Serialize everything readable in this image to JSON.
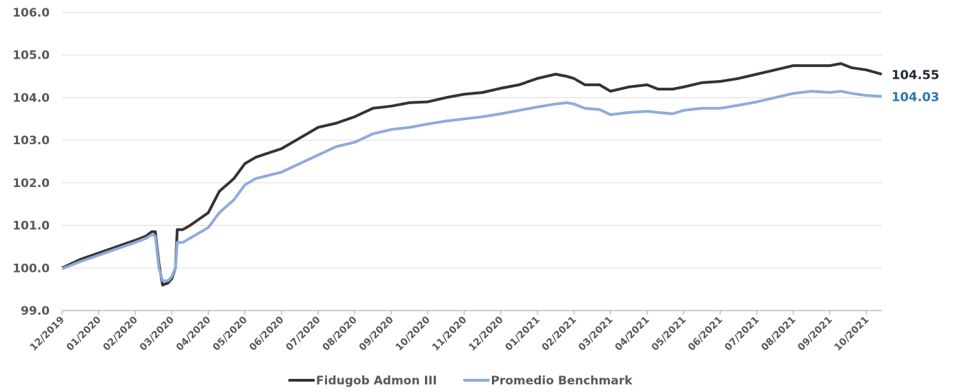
{
  "chart_data": {
    "type": "line",
    "x": [
      0,
      0.5,
      1,
      1.5,
      2,
      2.3,
      2.45,
      2.55,
      2.65,
      2.75,
      2.9,
      3.0,
      3.1,
      3.15,
      3.3,
      3.5,
      4.0,
      4.3,
      4.7,
      5.0,
      5.3,
      6.0,
      6.5,
      7.0,
      7.5,
      8.0,
      8.5,
      9.0,
      9.5,
      10.0,
      10.5,
      11.0,
      11.5,
      12.0,
      12.5,
      13.0,
      13.5,
      13.8,
      14.0,
      14.3,
      14.7,
      15.0,
      15.5,
      16.0,
      16.3,
      16.7,
      17.0,
      17.5,
      18.0,
      18.5,
      19.0,
      19.5,
      20.0,
      20.5,
      21.0,
      21.3,
      21.6,
      22.0,
      22.42
    ],
    "series": [
      {
        "name": "Fidugob Admon III",
        "color": "#333333",
        "label_color": "#222a35",
        "values": [
          100.0,
          100.2,
          100.35,
          100.5,
          100.65,
          100.75,
          100.85,
          100.85,
          100.1,
          99.6,
          99.65,
          99.75,
          100.0,
          100.9,
          100.9,
          101.0,
          101.3,
          101.8,
          102.1,
          102.45,
          102.6,
          102.8,
          103.05,
          103.3,
          103.4,
          103.55,
          103.75,
          103.8,
          103.88,
          103.9,
          104.0,
          104.08,
          104.12,
          104.22,
          104.3,
          104.45,
          104.55,
          104.5,
          104.45,
          104.3,
          104.3,
          104.15,
          104.25,
          104.3,
          104.2,
          104.2,
          104.25,
          104.35,
          104.38,
          104.45,
          104.55,
          104.65,
          104.75,
          104.75,
          104.75,
          104.8,
          104.7,
          104.65,
          104.55
        ]
      },
      {
        "name": "Promedio Benchmark",
        "color": "#8faadc",
        "label_color": "#2e75b6",
        "values": [
          99.98,
          100.15,
          100.3,
          100.45,
          100.6,
          100.7,
          100.78,
          100.75,
          100.0,
          99.7,
          99.7,
          99.8,
          100.0,
          100.6,
          100.6,
          100.7,
          100.95,
          101.3,
          101.6,
          101.95,
          102.1,
          102.25,
          102.45,
          102.65,
          102.85,
          102.95,
          103.15,
          103.25,
          103.3,
          103.38,
          103.45,
          103.5,
          103.55,
          103.62,
          103.7,
          103.78,
          103.85,
          103.88,
          103.85,
          103.75,
          103.72,
          103.6,
          103.65,
          103.68,
          103.65,
          103.62,
          103.7,
          103.75,
          103.75,
          103.82,
          103.9,
          104.0,
          104.1,
          104.15,
          104.12,
          104.15,
          104.1,
          104.05,
          104.03
        ]
      }
    ],
    "xlim": [
      0,
      22.42
    ],
    "xticks": [
      {
        "value": 0,
        "label": "12/2019"
      },
      {
        "value": 1,
        "label": "01/2020"
      },
      {
        "value": 2,
        "label": "02/2020"
      },
      {
        "value": 3,
        "label": "03/2020"
      },
      {
        "value": 4,
        "label": "04/2020"
      },
      {
        "value": 5,
        "label": "05/2020"
      },
      {
        "value": 6,
        "label": "06/2020"
      },
      {
        "value": 7,
        "label": "07/2020"
      },
      {
        "value": 8,
        "label": "08/2020"
      },
      {
        "value": 9,
        "label": "09/2020"
      },
      {
        "value": 10,
        "label": "10/2020"
      },
      {
        "value": 11,
        "label": "11/2020"
      },
      {
        "value": 12,
        "label": "12/2020"
      },
      {
        "value": 13,
        "label": "01/2021"
      },
      {
        "value": 14,
        "label": "02/2021"
      },
      {
        "value": 15,
        "label": "03/2021"
      },
      {
        "value": 16,
        "label": "04/2021"
      },
      {
        "value": 17,
        "label": "05/2021"
      },
      {
        "value": 18,
        "label": "06/2021"
      },
      {
        "value": 19,
        "label": "07/2021"
      },
      {
        "value": 20,
        "label": "08/2021"
      },
      {
        "value": 21,
        "label": "09/2021"
      },
      {
        "value": 22,
        "label": "10/2021"
      }
    ],
    "ylim": [
      99,
      106
    ],
    "yticks": [
      {
        "value": 99,
        "label": "99.0"
      },
      {
        "value": 100,
        "label": "100.0"
      },
      {
        "value": 101,
        "label": "101.0"
      },
      {
        "value": 102,
        "label": "102.0"
      },
      {
        "value": 103,
        "label": "103.0"
      },
      {
        "value": 104,
        "label": "104.0"
      },
      {
        "value": 105,
        "label": "105.0"
      },
      {
        "value": 106,
        "label": "106.0"
      }
    ],
    "grid": true,
    "legend": "bottom"
  }
}
